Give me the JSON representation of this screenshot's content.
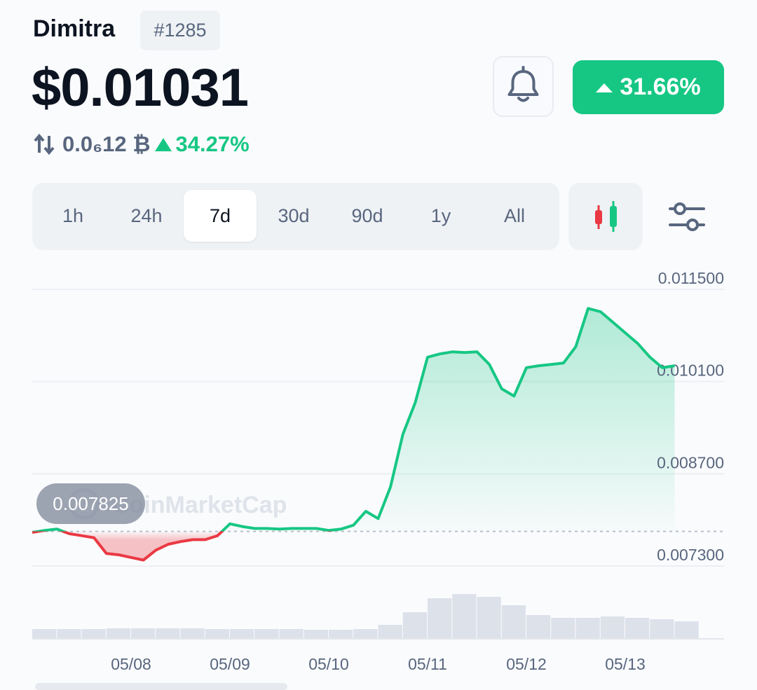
{
  "header": {
    "name": "Dimitra",
    "rank": "#1285",
    "price": "$0.01031",
    "change_24h": "31.66%",
    "btc_price": "0.0₆12 ₿",
    "btc_change": "34.27%"
  },
  "tabs": {
    "items": [
      "1h",
      "24h",
      "7d",
      "30d",
      "90d",
      "1y",
      "All"
    ],
    "selected": 2
  },
  "chart_data": {
    "type": "line",
    "x": [
      0,
      0.125,
      0.25,
      0.375,
      0.5,
      0.625,
      0.75,
      0.875,
      1,
      1.125,
      1.25,
      1.375,
      1.5,
      1.625,
      1.75,
      1.875,
      2,
      2.125,
      2.25,
      2.375,
      2.5,
      2.625,
      2.75,
      2.875,
      3,
      3.125,
      3.25,
      3.375,
      3.5,
      3.625,
      3.75,
      3.875,
      4,
      4.125,
      4.25,
      4.375,
      4.5,
      4.625,
      4.75,
      4.875,
      5,
      5.125,
      5.25,
      5.375,
      5.5,
      5.625,
      5.75,
      5.875,
      6,
      6.125,
      6.25,
      6.375,
      6.5
    ],
    "values": [
      0.00781,
      0.00784,
      0.00786,
      0.00779,
      0.00776,
      0.00773,
      0.00749,
      0.00747,
      0.00743,
      0.00739,
      0.00754,
      0.00763,
      0.00767,
      0.0077,
      0.0077,
      0.00776,
      0.00794,
      0.0079,
      0.00787,
      0.00787,
      0.00786,
      0.00787,
      0.00787,
      0.00787,
      0.00784,
      0.00786,
      0.00792,
      0.00813,
      0.00802,
      0.0085,
      0.0093,
      0.00978,
      0.01047,
      0.01052,
      0.01055,
      0.01054,
      0.01055,
      0.01036,
      0.00999,
      0.00988,
      0.01031,
      0.01034,
      0.01036,
      0.01038,
      0.01063,
      0.01121,
      0.01116,
      0.011,
      0.01084,
      0.01068,
      0.01047,
      0.01031,
      0.01034
    ],
    "xlim": [
      0,
      7
    ],
    "xticks": [
      {
        "value": 1,
        "label": "05/08"
      },
      {
        "value": 2,
        "label": "05/09"
      },
      {
        "value": 3,
        "label": "05/10"
      },
      {
        "value": 4,
        "label": "05/11"
      },
      {
        "value": 5,
        "label": "05/12"
      },
      {
        "value": 6,
        "label": "05/13"
      }
    ],
    "ylim": [
      0.0073,
      0.0115
    ],
    "yticks": [
      {
        "value": 0.0073,
        "label": "0.007300"
      },
      {
        "value": 0.0087,
        "label": "0.008700"
      },
      {
        "value": 0.0101,
        "label": "0.010100"
      },
      {
        "value": 0.0115,
        "label": "0.011500"
      }
    ],
    "baseline": 0.007825,
    "up_color": "#16c784",
    "down_color": "#ea3943",
    "watermark": "CoinMarketCap",
    "volume": {
      "x": [
        0,
        0.25,
        0.5,
        0.75,
        1,
        1.25,
        1.5,
        1.75,
        2,
        2.25,
        2.5,
        2.75,
        3,
        3.25,
        3.5,
        3.75,
        4,
        4.25,
        4.5,
        4.75,
        5,
        5.25,
        5.5,
        5.75,
        6,
        6.25,
        6.5
      ],
      "values": [
        14,
        14,
        14,
        15,
        15,
        15,
        15,
        14,
        14,
        14,
        14,
        13,
        13,
        14,
        20,
        38,
        58,
        64,
        60,
        48,
        34,
        30,
        30,
        32,
        30,
        28,
        25
      ],
      "ylim": [
        0,
        80
      ],
      "color": "#dde1ea"
    }
  }
}
